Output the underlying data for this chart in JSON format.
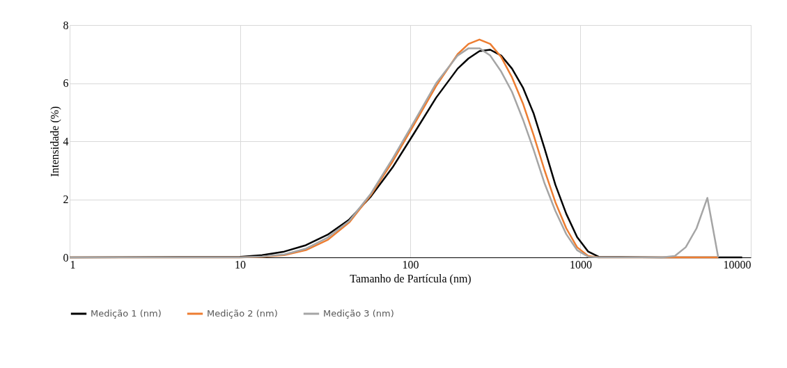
{
  "chart_data": {
    "type": "line",
    "xlabel": "Tamanho de Partícula (nm)",
    "ylabel": "Intensidade (%)",
    "log": "x",
    "xlim": [
      1,
      10000
    ],
    "xticks": [
      1,
      10,
      100,
      1000,
      10000
    ],
    "ylim": [
      0,
      8
    ],
    "yticks": [
      0,
      2,
      4,
      6,
      8
    ],
    "grid": true,
    "legend": "bottom",
    "marker": "none",
    "line_style": "solid",
    "x": [
      1,
      10,
      13.5,
      18.2,
      24.4,
      32.7,
      43.8,
      58.8,
      78.8,
      106,
      142,
      190,
      220,
      255,
      295,
      342,
      396,
      459,
      531,
      615,
      712,
      825,
      955,
      1110,
      1280,
      3000,
      3580,
      4150,
      4800,
      5560,
      6440,
      8900
    ],
    "series": [
      {
        "name": "Medição 1 (nm)",
        "color": "#000000",
        "values": [
          0,
          0.02,
          0.08,
          0.2,
          0.42,
          0.78,
          1.3,
          2.1,
          3.1,
          4.3,
          5.5,
          6.5,
          6.85,
          7.1,
          7.15,
          6.95,
          6.5,
          5.85,
          4.95,
          3.75,
          2.5,
          1.5,
          0.7,
          0.2,
          0.02,
          0,
          0,
          0,
          0,
          0,
          0,
          0
        ]
      },
      {
        "name": "Medição 2 (nm)",
        "color": "#ed7d31",
        "values": [
          0,
          0,
          0.02,
          0.08,
          0.25,
          0.6,
          1.2,
          2.15,
          3.3,
          4.6,
          5.9,
          7.0,
          7.35,
          7.5,
          7.35,
          6.9,
          6.2,
          5.3,
          4.2,
          3.0,
          1.9,
          1.0,
          0.35,
          0.05,
          0,
          0,
          0,
          0,
          0,
          0,
          0,
          null
        ]
      },
      {
        "name": "Medição 3 (nm)",
        "color": "#a5a5a5",
        "values": [
          0,
          0,
          0.03,
          0.1,
          0.3,
          0.68,
          1.25,
          2.2,
          3.4,
          4.7,
          6.0,
          6.95,
          7.2,
          7.2,
          6.95,
          6.4,
          5.7,
          4.75,
          3.7,
          2.55,
          1.6,
          0.8,
          0.25,
          0.02,
          0,
          0,
          0.05,
          0.35,
          1.0,
          2.05,
          0,
          null
        ]
      }
    ]
  }
}
